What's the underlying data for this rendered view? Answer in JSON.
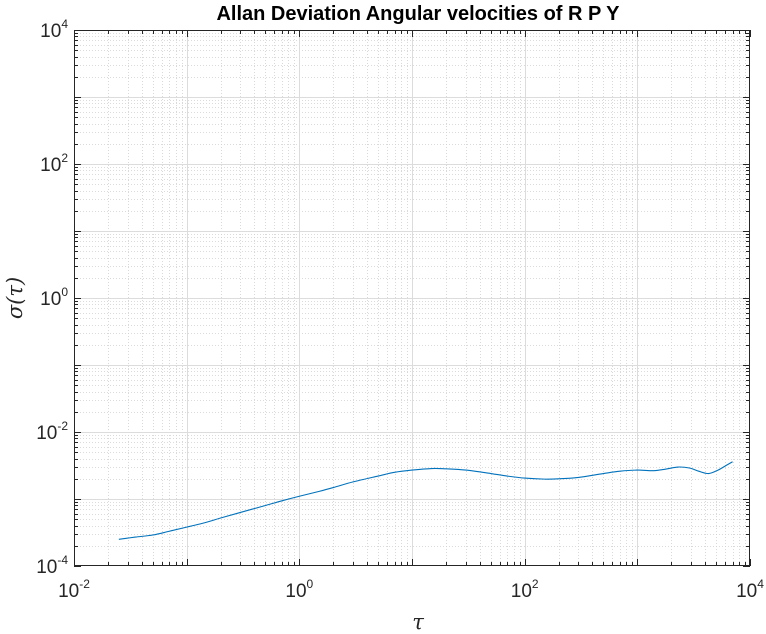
{
  "chart_data": {
    "type": "line",
    "title": "Allan Deviation Angular velocities of R P Y",
    "xlabel": "τ",
    "ylabel": "σ(τ)",
    "xscale": "log",
    "yscale": "log",
    "xlim": [
      0.01,
      10000
    ],
    "ylim": [
      0.0001,
      10000
    ],
    "grid": true,
    "minor_grid": true,
    "xticks": [
      {
        "base": "10",
        "exp": "-2"
      },
      {
        "base": "10",
        "exp": "0"
      },
      {
        "base": "10",
        "exp": "2"
      },
      {
        "base": "10",
        "exp": "4"
      }
    ],
    "yticks": [
      {
        "base": "10",
        "exp": "-4"
      },
      {
        "base": "10",
        "exp": "-2"
      },
      {
        "base": "10",
        "exp": "0"
      },
      {
        "base": "10",
        "exp": "2"
      },
      {
        "base": "10",
        "exp": "4"
      }
    ],
    "series": [
      {
        "color": "#0072BD",
        "x": [
          0.025,
          0.035,
          0.05,
          0.07,
          0.1,
          0.15,
          0.2,
          0.3,
          0.5,
          0.7,
          1,
          1.5,
          2,
          3,
          5,
          7,
          10,
          15,
          20,
          30,
          50,
          70,
          100,
          150,
          200,
          300,
          500,
          700,
          1000,
          1400,
          1800,
          2300,
          2900,
          3500,
          4300,
          5200,
          6200,
          7000
        ],
        "y": [
          0.00025,
          0.00027,
          0.00029,
          0.00033,
          0.00038,
          0.00045,
          0.00052,
          0.00063,
          0.0008,
          0.00094,
          0.0011,
          0.0013,
          0.00148,
          0.0018,
          0.0022,
          0.0025,
          0.0027,
          0.00285,
          0.00282,
          0.0027,
          0.0024,
          0.0022,
          0.00205,
          0.00198,
          0.002,
          0.0021,
          0.0024,
          0.0026,
          0.0027,
          0.00265,
          0.0028,
          0.003,
          0.0029,
          0.0026,
          0.0024,
          0.0027,
          0.0032,
          0.0036
        ]
      }
    ]
  }
}
